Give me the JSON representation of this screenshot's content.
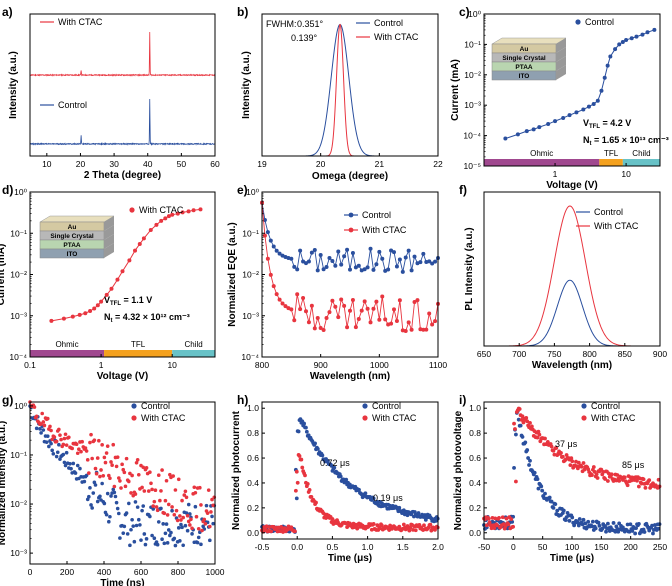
{
  "colors": {
    "control": "#2a4f9e",
    "ctac": "#e8353f",
    "ohmic": "#a0488f",
    "tfl": "#f4a11e",
    "child": "#68c2c7"
  },
  "chart_data": [
    {
      "id": "a",
      "panel": "a)",
      "type": "line",
      "xlabel": "2 Theta (degree)",
      "ylabel": "Intensity (a.u.)",
      "xlim": [
        5,
        60
      ],
      "xticks": [
        10,
        20,
        30,
        40,
        50,
        60
      ],
      "series": [
        {
          "name": "With CTAC",
          "peaks": [
            {
              "x": 20.2,
              "h": 0.12
            },
            {
              "x": 40.6,
              "h": 1.0
            }
          ]
        },
        {
          "name": "Control",
          "peaks": [
            {
              "x": 20.2,
              "h": 0.18
            },
            {
              "x": 40.6,
              "h": 1.0
            }
          ]
        }
      ]
    },
    {
      "id": "b",
      "panel": "b)",
      "type": "line",
      "xlabel": "Omega (degree)",
      "ylabel": "Intensity (a.u.)",
      "xlim": [
        19,
        22
      ],
      "xticks": [
        19,
        20,
        21,
        22
      ],
      "annotations": {
        "fwhm_label": "FWHM:",
        "fwhm_control": "0.351°",
        "fwhm_ctac": "0.139°"
      },
      "series": [
        {
          "name": "Control",
          "center": 20.33,
          "fwhm": 0.351
        },
        {
          "name": "With CTAC",
          "center": 20.33,
          "fwhm": 0.139
        }
      ]
    },
    {
      "id": "c",
      "panel": "c)",
      "type": "scatter",
      "xlabel": "Voltage (V)",
      "ylabel": "Current (mA)",
      "xscale": "log",
      "yscale": "log",
      "xlim": [
        0.1,
        30
      ],
      "ylim": [
        1e-05,
        1
      ],
      "xtick_labels": [
        "1",
        "10"
      ],
      "ytick_labels": [
        "10⁻⁵",
        "10⁻⁴",
        "10⁻³",
        "10⁻²",
        "10⁻¹",
        "10⁰"
      ],
      "stack_layers": [
        "Au",
        "Single Crystal",
        "PTAA",
        "ITO"
      ],
      "vtfl_label": "V",
      "vtfl_sub": "TFL",
      "vtfl_value": " = 4.2 V",
      "nt_label": "N",
      "nt_sub": "t",
      "nt_value": " = 1.65 × 10¹³ cm⁻³",
      "regions": [
        "Ohmic",
        "TFL",
        "Child"
      ],
      "series": [
        {
          "name": "Control",
          "x": [
            0.2,
            0.3,
            0.4,
            0.5,
            0.6,
            0.8,
            1.0,
            1.3,
            1.6,
            2.0,
            2.5,
            3.0,
            3.5,
            4.0,
            4.5,
            5.0,
            5.5,
            6.0,
            7.0,
            8.0,
            9.0,
            10.0,
            12.0,
            14.0,
            17.0,
            20.0,
            25.0
          ],
          "y": [
            8e-05,
            0.00011,
            0.00014,
            0.00016,
            0.00019,
            0.00024,
            0.0003,
            0.00038,
            0.00047,
            0.00058,
            0.00072,
            0.0009,
            0.0011,
            0.0014,
            0.003,
            0.008,
            0.02,
            0.04,
            0.07,
            0.1,
            0.12,
            0.14,
            0.16,
            0.18,
            0.21,
            0.25,
            0.3
          ]
        }
      ]
    },
    {
      "id": "d",
      "panel": "d)",
      "type": "scatter",
      "xlabel": "Voltage (V)",
      "ylabel": "Current (mA)",
      "xscale": "log",
      "yscale": "log",
      "xlim": [
        0.1,
        40
      ],
      "ylim": [
        0.0001,
        1
      ],
      "xtick_labels": [
        "0.1",
        "1",
        "10"
      ],
      "ytick_labels": [
        "10⁻⁴",
        "10⁻³",
        "10⁻²",
        "10⁻¹",
        "10⁰"
      ],
      "stack_layers": [
        "Au",
        "Single Crystal",
        "PTAA",
        "ITO"
      ],
      "vtfl_label": "V",
      "vtfl_sub": "TFL",
      "vtfl_value": " = 1.1 V",
      "nt_label": "N",
      "nt_sub": "t",
      "nt_value": " = 4.32 × 10¹² cm⁻³",
      "regions": [
        "Ohmic",
        "TFL",
        "Child"
      ],
      "series": [
        {
          "name": "With CTAC",
          "x": [
            0.2,
            0.3,
            0.4,
            0.5,
            0.6,
            0.7,
            0.8,
            0.9,
            1.0,
            1.2,
            1.4,
            1.7,
            2.0,
            2.5,
            3.0,
            3.5,
            4.0,
            5.0,
            6.0,
            7.0,
            8.0,
            9.0,
            10.0,
            12.0,
            14.0,
            17.0,
            20.0,
            25.0
          ],
          "y": [
            0.00075,
            0.00085,
            0.00095,
            0.00105,
            0.00115,
            0.0013,
            0.0015,
            0.0018,
            0.0022,
            0.0032,
            0.0045,
            0.0075,
            0.012,
            0.022,
            0.038,
            0.055,
            0.075,
            0.12,
            0.16,
            0.2,
            0.23,
            0.26,
            0.28,
            0.3,
            0.32,
            0.34,
            0.36,
            0.38
          ]
        }
      ]
    },
    {
      "id": "e",
      "panel": "e)",
      "type": "line",
      "xlabel": "Wavelength (nm)",
      "ylabel": "Normalized EQE (a.u.)",
      "yscale": "log",
      "xlim": [
        800,
        1100
      ],
      "ylim": [
        0.0001,
        1
      ],
      "xticks": [
        800,
        900,
        1000,
        1100
      ],
      "ytick_labels": [
        "10⁻⁴",
        "10⁻³",
        "10⁻²",
        "10⁻¹",
        "10⁰"
      ],
      "series": [
        {
          "name": "Control",
          "baseline": 0.022
        },
        {
          "name": "With CTAC",
          "baseline": 0.0012
        }
      ]
    },
    {
      "id": "f",
      "panel": "f)",
      "type": "line",
      "xlabel": "Wavelength (nm)",
      "ylabel": "PL Intensity (a.u.)",
      "xlim": [
        650,
        900
      ],
      "xticks": [
        650,
        700,
        750,
        800,
        850,
        900
      ],
      "series": [
        {
          "name": "Control",
          "center": 772,
          "fwhm": 42,
          "amp": 0.47
        },
        {
          "name": "With CTAC",
          "center": 772,
          "fwhm": 52,
          "amp": 1.0
        }
      ]
    },
    {
      "id": "g",
      "panel": "g)",
      "type": "scatter",
      "xlabel": "Time (ns)",
      "ylabel": "Normalized Intensity (a.u.)",
      "yscale": "log",
      "xlim": [
        0,
        1000
      ],
      "ylim": [
        0.0006,
        1.2
      ],
      "xticks": [
        0,
        200,
        400,
        600,
        800,
        1000
      ],
      "ytick_labels": [
        "10⁻³",
        "10⁻²",
        "10⁻¹",
        "10⁰"
      ],
      "series": [
        {
          "name": "Control",
          "tau1": 30,
          "tau2": 110,
          "floor": 0.004
        },
        {
          "name": "With CTAC",
          "tau1": 50,
          "tau2": 220,
          "floor": 0.008
        }
      ]
    },
    {
      "id": "h",
      "panel": "h)",
      "type": "scatter",
      "xlabel": "Time (μs)",
      "ylabel": "Normalized photocurrent",
      "xlim": [
        -0.5,
        2.0
      ],
      "ylim": [
        -0.05,
        1.05
      ],
      "xticks": [
        -0.5,
        0.0,
        0.5,
        1.0,
        1.5,
        2.0
      ],
      "yticks": [
        0.0,
        0.2,
        0.4,
        0.6,
        0.8,
        1.0
      ],
      "annotations": {
        "control_tau": "0.72 μs",
        "ctac_tau": "0.19 μs"
      },
      "series": [
        {
          "name": "Control",
          "tau": 0.72
        },
        {
          "name": "With CTAC",
          "tau": 0.19
        }
      ]
    },
    {
      "id": "i",
      "panel": "i)",
      "type": "scatter",
      "xlabel": "Time (μs)",
      "ylabel": "Normalized photovoltage",
      "xlim": [
        -50,
        250
      ],
      "ylim": [
        -0.05,
        1.05
      ],
      "xticks": [
        -50,
        0,
        50,
        100,
        150,
        200,
        250
      ],
      "yticks": [
        0.0,
        0.2,
        0.4,
        0.6,
        0.8,
        1.0
      ],
      "annotations": {
        "control_tau": "37 μs",
        "ctac_tau": "85 μs"
      },
      "series": [
        {
          "name": "Control",
          "tau": 37,
          "floor": 0.03
        },
        {
          "name": "With CTAC",
          "tau": 85,
          "floor": 0.35
        }
      ]
    }
  ]
}
